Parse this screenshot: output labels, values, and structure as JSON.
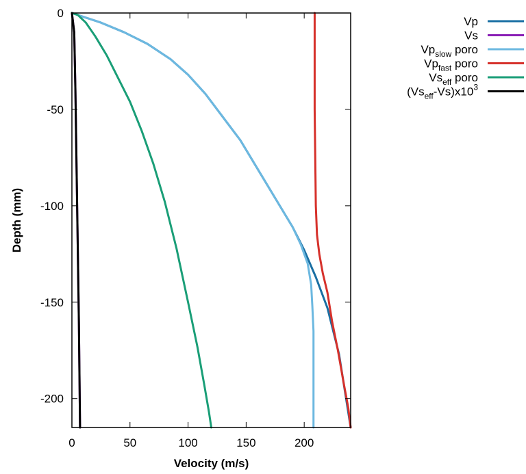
{
  "chart_data": {
    "type": "line",
    "xlabel": "Velocity (m/s)",
    "ylabel": "Depth (mm)",
    "xlim": [
      0,
      240
    ],
    "ylim": [
      -215,
      0
    ],
    "xticks": [
      "0",
      "50",
      "100",
      "150",
      "200"
    ],
    "yticks": [
      "0",
      "-50",
      "-100",
      "-150",
      "-200"
    ],
    "grid": false,
    "legend_position": "top-right, outside plot",
    "series": [
      {
        "name": "Vp",
        "legend": {
          "main": "Vp",
          "sub": "",
          "post": "",
          "sup": ""
        },
        "color": "#1a6fa3",
        "points": [
          [
            0,
            0
          ],
          [
            10,
            -2
          ],
          [
            25,
            -5
          ],
          [
            45,
            -10
          ],
          [
            65,
            -16
          ],
          [
            85,
            -24
          ],
          [
            100,
            -32
          ],
          [
            115,
            -42
          ],
          [
            130,
            -54
          ],
          [
            145,
            -66
          ],
          [
            160,
            -81
          ],
          [
            175,
            -96
          ],
          [
            190,
            -111
          ],
          [
            200,
            -123
          ],
          [
            210,
            -137
          ],
          [
            220,
            -153
          ],
          [
            230,
            -177
          ],
          [
            240,
            -215
          ]
        ]
      },
      {
        "name": "Vs",
        "legend": {
          "main": "Vs",
          "sub": "",
          "post": "",
          "sup": ""
        },
        "color": "#8a1fb5",
        "points": [
          [
            0,
            0
          ],
          [
            2,
            -10
          ],
          [
            3,
            -40
          ],
          [
            4,
            -80
          ],
          [
            5,
            -120
          ],
          [
            6,
            -160
          ],
          [
            7,
            -215
          ]
        ]
      },
      {
        "name": "Vp slow poro",
        "legend": {
          "main": "Vp",
          "sub": "slow",
          "post": " poro",
          "sup": ""
        },
        "color": "#6cb8e0",
        "points": [
          [
            0,
            0
          ],
          [
            10,
            -2
          ],
          [
            25,
            -5
          ],
          [
            45,
            -10
          ],
          [
            65,
            -16
          ],
          [
            85,
            -24
          ],
          [
            100,
            -32
          ],
          [
            115,
            -42
          ],
          [
            130,
            -54
          ],
          [
            145,
            -66
          ],
          [
            160,
            -81
          ],
          [
            175,
            -96
          ],
          [
            190,
            -111
          ],
          [
            197,
            -120
          ],
          [
            203,
            -130
          ],
          [
            206,
            -141
          ],
          [
            207,
            -152
          ],
          [
            208,
            -165
          ],
          [
            208,
            -215
          ]
        ]
      },
      {
        "name": "Vp fast poro",
        "legend": {
          "main": "Vp",
          "sub": "fast",
          "post": " poro",
          "sup": ""
        },
        "color": "#d6312b",
        "points": [
          [
            209,
            0
          ],
          [
            209,
            -50
          ],
          [
            210,
            -100
          ],
          [
            211,
            -115
          ],
          [
            213,
            -125
          ],
          [
            216,
            -135
          ],
          [
            220,
            -145
          ],
          [
            224,
            -160
          ],
          [
            229,
            -175
          ],
          [
            234,
            -192
          ],
          [
            238,
            -205
          ],
          [
            240,
            -215
          ]
        ]
      },
      {
        "name": "Vs eff poro",
        "legend": {
          "main": "Vs",
          "sub": "eff",
          "post": " poro",
          "sup": ""
        },
        "color": "#1a9e77",
        "points": [
          [
            0,
            0
          ],
          [
            5,
            -1
          ],
          [
            12,
            -5
          ],
          [
            20,
            -12
          ],
          [
            30,
            -22
          ],
          [
            40,
            -34
          ],
          [
            50,
            -46
          ],
          [
            60,
            -61
          ],
          [
            70,
            -78
          ],
          [
            80,
            -98
          ],
          [
            90,
            -122
          ],
          [
            100,
            -150
          ],
          [
            108,
            -173
          ],
          [
            114,
            -193
          ],
          [
            118,
            -207
          ],
          [
            120,
            -215
          ]
        ]
      },
      {
        "name": "(Vs eff -Vs)x10 3",
        "legend": {
          "main": "(Vs",
          "sub": "eff",
          "post": "-Vs)x10",
          "sup": "3"
        },
        "color": "#000000",
        "points": [
          [
            0,
            0
          ],
          [
            2,
            -10
          ],
          [
            3,
            -40
          ],
          [
            4,
            -80
          ],
          [
            5,
            -120
          ],
          [
            6,
            -160
          ],
          [
            7,
            -215
          ]
        ]
      }
    ]
  }
}
